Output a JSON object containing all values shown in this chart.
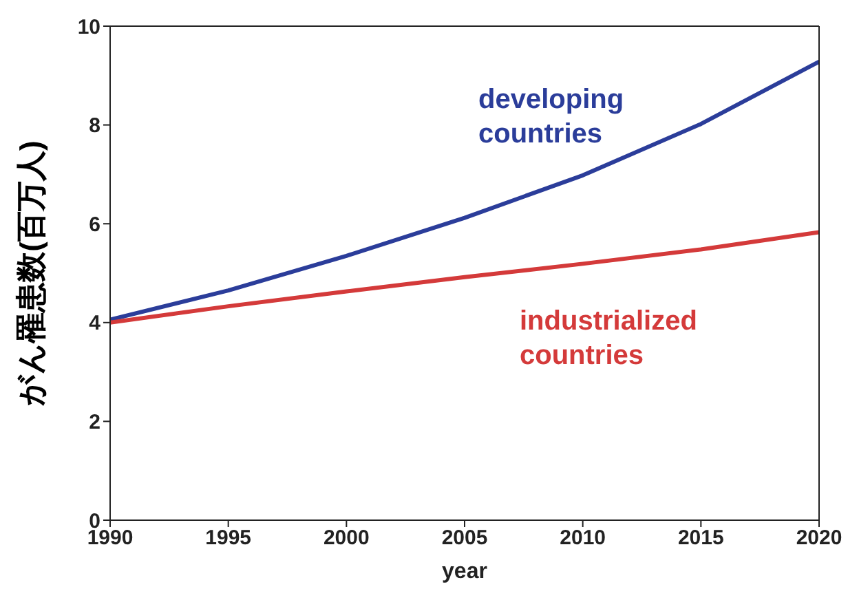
{
  "chart_data": {
    "type": "line",
    "xlabel": "year",
    "ylabel": "がん罹患数(百万人)",
    "x": [
      1990,
      1995,
      2000,
      2005,
      2010,
      2015,
      2020
    ],
    "series": [
      {
        "name": "developing countries",
        "color": "#2b3d9a",
        "values": [
          4.06,
          4.65,
          5.35,
          6.12,
          6.98,
          8.02,
          9.28
        ]
      },
      {
        "name": "industrialized countries",
        "color": "#d43a3a",
        "values": [
          4.0,
          4.33,
          4.63,
          4.92,
          5.19,
          5.48,
          5.83
        ]
      }
    ],
    "xlim": [
      1990,
      2020
    ],
    "xticks": [
      1990,
      1995,
      2000,
      2005,
      2010,
      2015,
      2020
    ],
    "ylim": [
      0,
      10
    ],
    "yticks": [
      0,
      2,
      4,
      6,
      8,
      10
    ],
    "grid": false,
    "legend": false,
    "marker": "none",
    "line_style": "solid"
  }
}
